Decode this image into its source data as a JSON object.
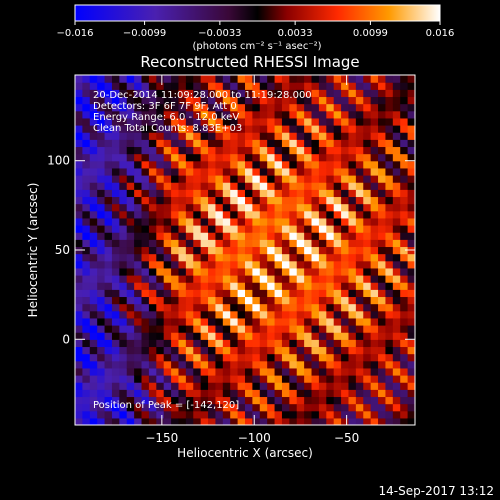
{
  "chart_data": {
    "type": "heatmap",
    "title": "Reconstructed RHESSI Image",
    "xlabel": "Heliocentric X (arcsec)",
    "ylabel": "Heliocentric Y (arcsec)",
    "xlim": [
      -197,
      -13
    ],
    "ylim": [
      -48,
      148
    ],
    "x_ticks": [
      {
        "value": -150,
        "label": "−150"
      },
      {
        "value": -100,
        "label": "−100"
      },
      {
        "value": -50,
        "label": "−50"
      }
    ],
    "y_ticks": [
      {
        "value": 0,
        "label": "0"
      },
      {
        "value": 50,
        "label": "50"
      },
      {
        "value": 100,
        "label": "100"
      }
    ],
    "colorbar": {
      "min": -0.016,
      "max": 0.016,
      "colormap": "blue-purple-red-orange-yellow-white",
      "units": "(photons cm⁻² s⁻¹ asec⁻²)",
      "ticks": [
        {
          "value": -0.016,
          "label": "−0.016"
        },
        {
          "value": -0.0099,
          "label": "−0.0099"
        },
        {
          "value": -0.0033,
          "label": "−0.0033"
        },
        {
          "value": 0.0033,
          "label": "0.0033"
        },
        {
          "value": 0.0099,
          "label": "0.0099"
        },
        {
          "value": 0.016,
          "label": "0.016"
        }
      ]
    },
    "image_pattern": {
      "description_values": "diagonal fringe pattern of flux (data units), peak near x=-142,y=120 label; brightest ridge near x=-90,y=50",
      "peak_value": 0.016,
      "min_value": -0.016
    },
    "annotations": [
      "20-Dec-2014 11:09:28.000 to 11:19:28.000",
      "Detectors: 3F 6F 7F 9F, Att 0",
      "Energy Range: 6.0 - 12.0 keV",
      "Clean    Total Counts: 8.83E+03"
    ],
    "peak_label": "Position of Peak = [-142,120]"
  },
  "footer": {
    "timestamp": "14-Sep-2017 13:12"
  }
}
